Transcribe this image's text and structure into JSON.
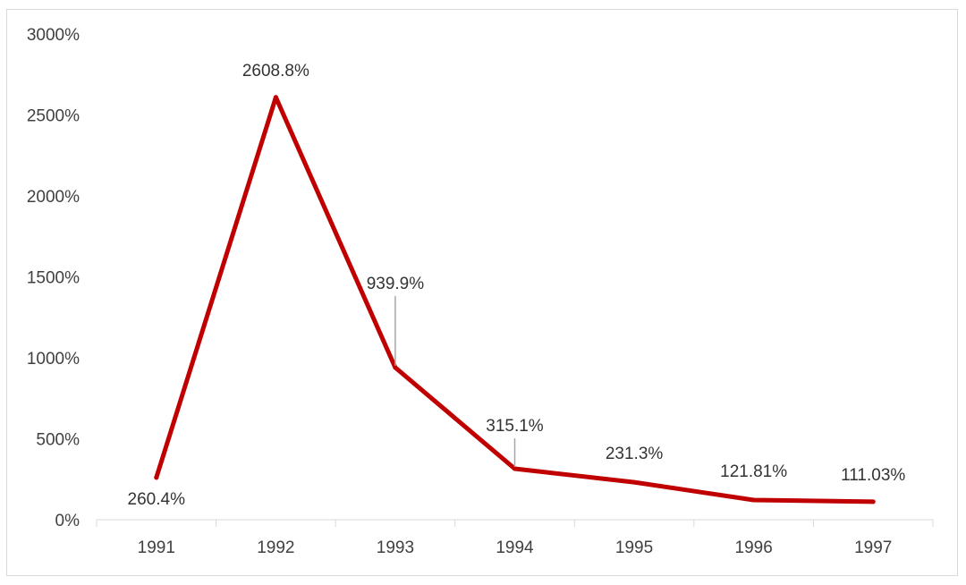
{
  "chart_data": {
    "type": "line",
    "categories": [
      "1991",
      "1992",
      "1993",
      "1994",
      "1995",
      "1996",
      "1997"
    ],
    "series": [
      {
        "values": [
          260.4,
          2608.8,
          939.9,
          315.1,
          231.3,
          121.81,
          111.03
        ],
        "labels": [
          "260.4%",
          "2608.8%",
          "939.9%",
          "315.1%",
          "231.3%",
          "121.81%",
          "111.03%"
        ],
        "color": "#c00000"
      }
    ],
    "ylim": [
      0,
      3000
    ],
    "yticks": [
      0,
      500,
      1000,
      1500,
      2000,
      2500,
      3000
    ],
    "ytick_labels": [
      "0%",
      "500%",
      "1000%",
      "1500%",
      "2000%",
      "2500%",
      "3000%"
    ],
    "grid": false,
    "legend": "none",
    "title": "",
    "xlabel": "",
    "ylabel": ""
  }
}
